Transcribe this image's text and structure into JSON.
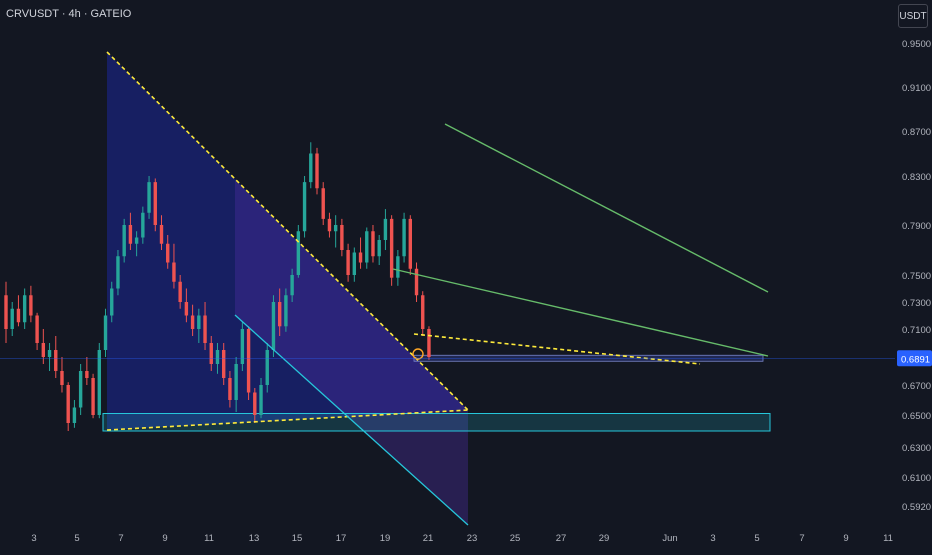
{
  "header": {
    "symbol": "CRVUSDT · 4h · GATEIO",
    "currency_button": "USDT"
  },
  "colors": {
    "background": "#131722",
    "bull": "#26a69a",
    "bear": "#ef5350",
    "pattern_line": "#66bb6a",
    "dash": "#ffeb3b",
    "zone_border": "#26c6da",
    "triangle_fill": "#1a237e",
    "price_badge": "#2962ff"
  },
  "chart_data": {
    "type": "candlestick",
    "symbol": "CRVUSDT",
    "timeframe": "4h",
    "exchange": "GATEIO",
    "current_price": "0.6891",
    "x_ticks": [
      "3",
      "5",
      "7",
      "9",
      "11",
      "13",
      "15",
      "17",
      "19",
      "21",
      "23",
      "25",
      "27",
      "29",
      "Jun",
      "3",
      "5",
      "7",
      "9",
      "11"
    ],
    "y_ticks": [
      "0.9500",
      "0.9100",
      "0.8700",
      "0.8300",
      "0.7900",
      "0.7500",
      "0.7300",
      "0.7100",
      "0.6700",
      "0.6500",
      "0.6300",
      "0.6100",
      "0.5920"
    ],
    "support_zone": [
      0.64,
      0.651
    ],
    "candles": [
      [
        0.735,
        0.745,
        0.7,
        0.71
      ],
      [
        0.71,
        0.73,
        0.705,
        0.725
      ],
      [
        0.725,
        0.735,
        0.712,
        0.715
      ],
      [
        0.715,
        0.74,
        0.71,
        0.735
      ],
      [
        0.735,
        0.742,
        0.715,
        0.72
      ],
      [
        0.72,
        0.722,
        0.695,
        0.7
      ],
      [
        0.7,
        0.71,
        0.685,
        0.69
      ],
      [
        0.69,
        0.7,
        0.68,
        0.695
      ],
      [
        0.695,
        0.705,
        0.675,
        0.68
      ],
      [
        0.68,
        0.69,
        0.665,
        0.67
      ],
      [
        0.67,
        0.672,
        0.64,
        0.645
      ],
      [
        0.645,
        0.66,
        0.642,
        0.655
      ],
      [
        0.655,
        0.685,
        0.65,
        0.68
      ],
      [
        0.68,
        0.69,
        0.67,
        0.675
      ],
      [
        0.675,
        0.678,
        0.648,
        0.65
      ],
      [
        0.65,
        0.7,
        0.648,
        0.695
      ],
      [
        0.695,
        0.725,
        0.69,
        0.72
      ],
      [
        0.72,
        0.745,
        0.715,
        0.74
      ],
      [
        0.74,
        0.77,
        0.735,
        0.765
      ],
      [
        0.765,
        0.795,
        0.76,
        0.79
      ],
      [
        0.79,
        0.8,
        0.77,
        0.775
      ],
      [
        0.775,
        0.785,
        0.765,
        0.78
      ],
      [
        0.78,
        0.805,
        0.775,
        0.8
      ],
      [
        0.8,
        0.83,
        0.795,
        0.825
      ],
      [
        0.825,
        0.828,
        0.785,
        0.79
      ],
      [
        0.79,
        0.798,
        0.77,
        0.775
      ],
      [
        0.775,
        0.782,
        0.755,
        0.76
      ],
      [
        0.76,
        0.775,
        0.74,
        0.745
      ],
      [
        0.745,
        0.75,
        0.725,
        0.73
      ],
      [
        0.73,
        0.74,
        0.715,
        0.72
      ],
      [
        0.72,
        0.728,
        0.705,
        0.71
      ],
      [
        0.71,
        0.725,
        0.7,
        0.72
      ],
      [
        0.72,
        0.73,
        0.695,
        0.7
      ],
      [
        0.7,
        0.705,
        0.68,
        0.685
      ],
      [
        0.685,
        0.7,
        0.678,
        0.695
      ],
      [
        0.695,
        0.7,
        0.67,
        0.675
      ],
      [
        0.675,
        0.68,
        0.655,
        0.66
      ],
      [
        0.66,
        0.69,
        0.652,
        0.685
      ],
      [
        0.685,
        0.715,
        0.68,
        0.71
      ],
      [
        0.71,
        0.712,
        0.66,
        0.665
      ],
      [
        0.665,
        0.668,
        0.645,
        0.65
      ],
      [
        0.65,
        0.675,
        0.648,
        0.67
      ],
      [
        0.67,
        0.7,
        0.665,
        0.695
      ],
      [
        0.695,
        0.735,
        0.69,
        0.73
      ],
      [
        0.73,
        0.74,
        0.705,
        0.712
      ],
      [
        0.712,
        0.74,
        0.708,
        0.735
      ],
      [
        0.735,
        0.755,
        0.73,
        0.75
      ],
      [
        0.75,
        0.79,
        0.748,
        0.785
      ],
      [
        0.785,
        0.83,
        0.78,
        0.825
      ],
      [
        0.825,
        0.86,
        0.82,
        0.85
      ],
      [
        0.85,
        0.855,
        0.815,
        0.82
      ],
      [
        0.82,
        0.825,
        0.79,
        0.795
      ],
      [
        0.795,
        0.8,
        0.78,
        0.785
      ],
      [
        0.785,
        0.798,
        0.772,
        0.79
      ],
      [
        0.79,
        0.795,
        0.765,
        0.77
      ],
      [
        0.77,
        0.775,
        0.745,
        0.75
      ],
      [
        0.75,
        0.772,
        0.745,
        0.768
      ],
      [
        0.768,
        0.78,
        0.755,
        0.76
      ],
      [
        0.76,
        0.788,
        0.755,
        0.785
      ],
      [
        0.785,
        0.79,
        0.76,
        0.765
      ],
      [
        0.765,
        0.782,
        0.758,
        0.778
      ],
      [
        0.778,
        0.803,
        0.77,
        0.795
      ],
      [
        0.795,
        0.798,
        0.742,
        0.748
      ],
      [
        0.748,
        0.77,
        0.742,
        0.765
      ],
      [
        0.765,
        0.8,
        0.76,
        0.795
      ],
      [
        0.795,
        0.798,
        0.75,
        0.755
      ],
      [
        0.755,
        0.76,
        0.73,
        0.735
      ],
      [
        0.735,
        0.738,
        0.705,
        0.71
      ],
      [
        0.71,
        0.712,
        0.688,
        0.69
      ]
    ]
  }
}
